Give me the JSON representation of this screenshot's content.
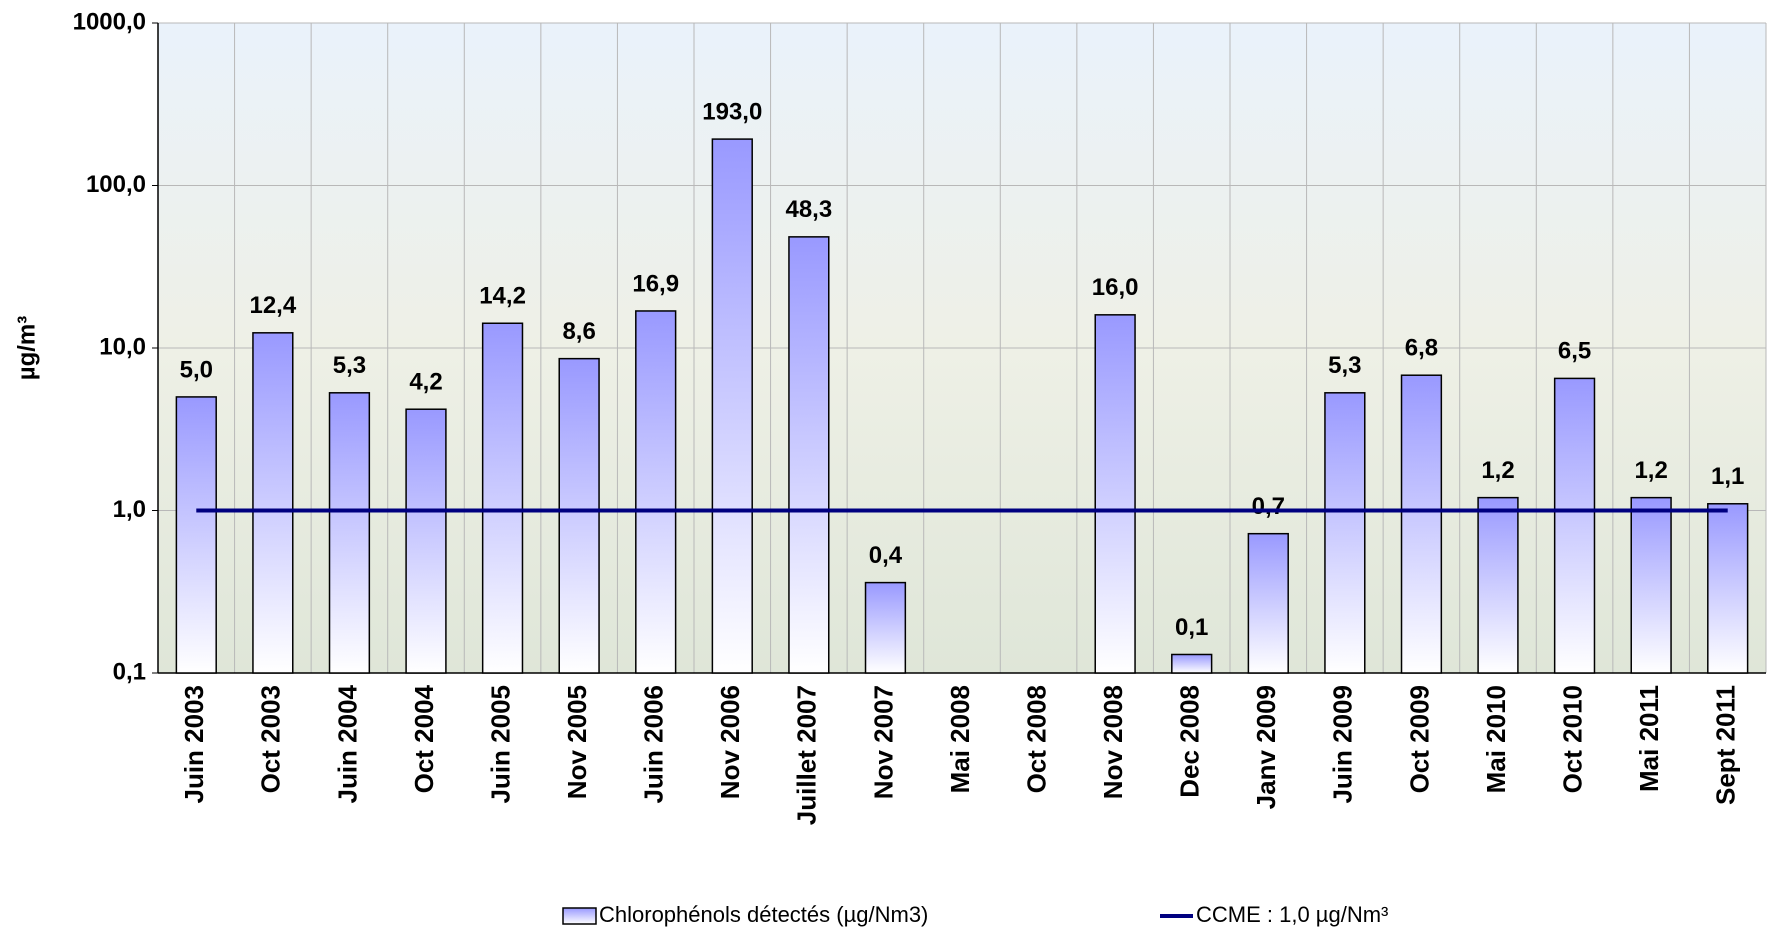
{
  "chart_data": {
    "type": "bar",
    "ylabel": "µg/m³",
    "yscale": "log",
    "grid": true,
    "categories": [
      "Juin 2003",
      "Oct 2003",
      "Juin 2004",
      "Oct 2004",
      "Juin 2005",
      "Nov 2005",
      "Juin 2006",
      "Nov 2006",
      "Juillet 2007",
      "Nov 2007",
      "Mai 2008",
      "Oct 2008",
      "Nov 2008",
      "Dec 2008",
      "Janv 2009",
      "Juin 2009",
      "Oct 2009",
      "Mai 2010",
      "Oct 2010",
      "Mai 2011",
      "Sept 2011"
    ],
    "series": [
      {
        "name": "Chlorophénols détectés (µg/Nm3)",
        "type": "bar",
        "color": "#9999ff",
        "values": [
          5.0,
          12.4,
          5.3,
          4.2,
          14.2,
          8.6,
          16.9,
          193.0,
          48.3,
          0.36,
          null,
          null,
          16.0,
          0.13,
          0.72,
          5.3,
          6.8,
          1.2,
          6.5,
          1.2,
          1.1
        ],
        "value_labels": [
          "5,0",
          "12,4",
          "5,3",
          "4,2",
          "14,2",
          "8,6",
          "16,9",
          "193,0",
          "48,3",
          "0,4",
          null,
          null,
          "16,0",
          "0,1",
          "0,7",
          "5,3",
          "6,8",
          "1,2",
          "6,5",
          "1,2",
          "1,1"
        ]
      },
      {
        "name": "CCME : 1,0 µg/Nm³",
        "type": "line",
        "color": "#000080",
        "values": [
          1,
          1,
          1,
          1,
          1,
          1,
          1,
          1,
          1,
          1,
          1,
          1,
          1,
          1,
          1,
          1,
          1,
          1,
          1,
          1,
          1
        ]
      }
    ],
    "ylim": [
      0.1,
      1000
    ],
    "yticks": [
      {
        "value": 0.1,
        "label": "0,1"
      },
      {
        "value": 1,
        "label": "1,0"
      },
      {
        "value": 10,
        "label": "10,0"
      },
      {
        "value": 100,
        "label": "100,0"
      },
      {
        "value": 1000,
        "label": "1000,0"
      }
    ]
  }
}
